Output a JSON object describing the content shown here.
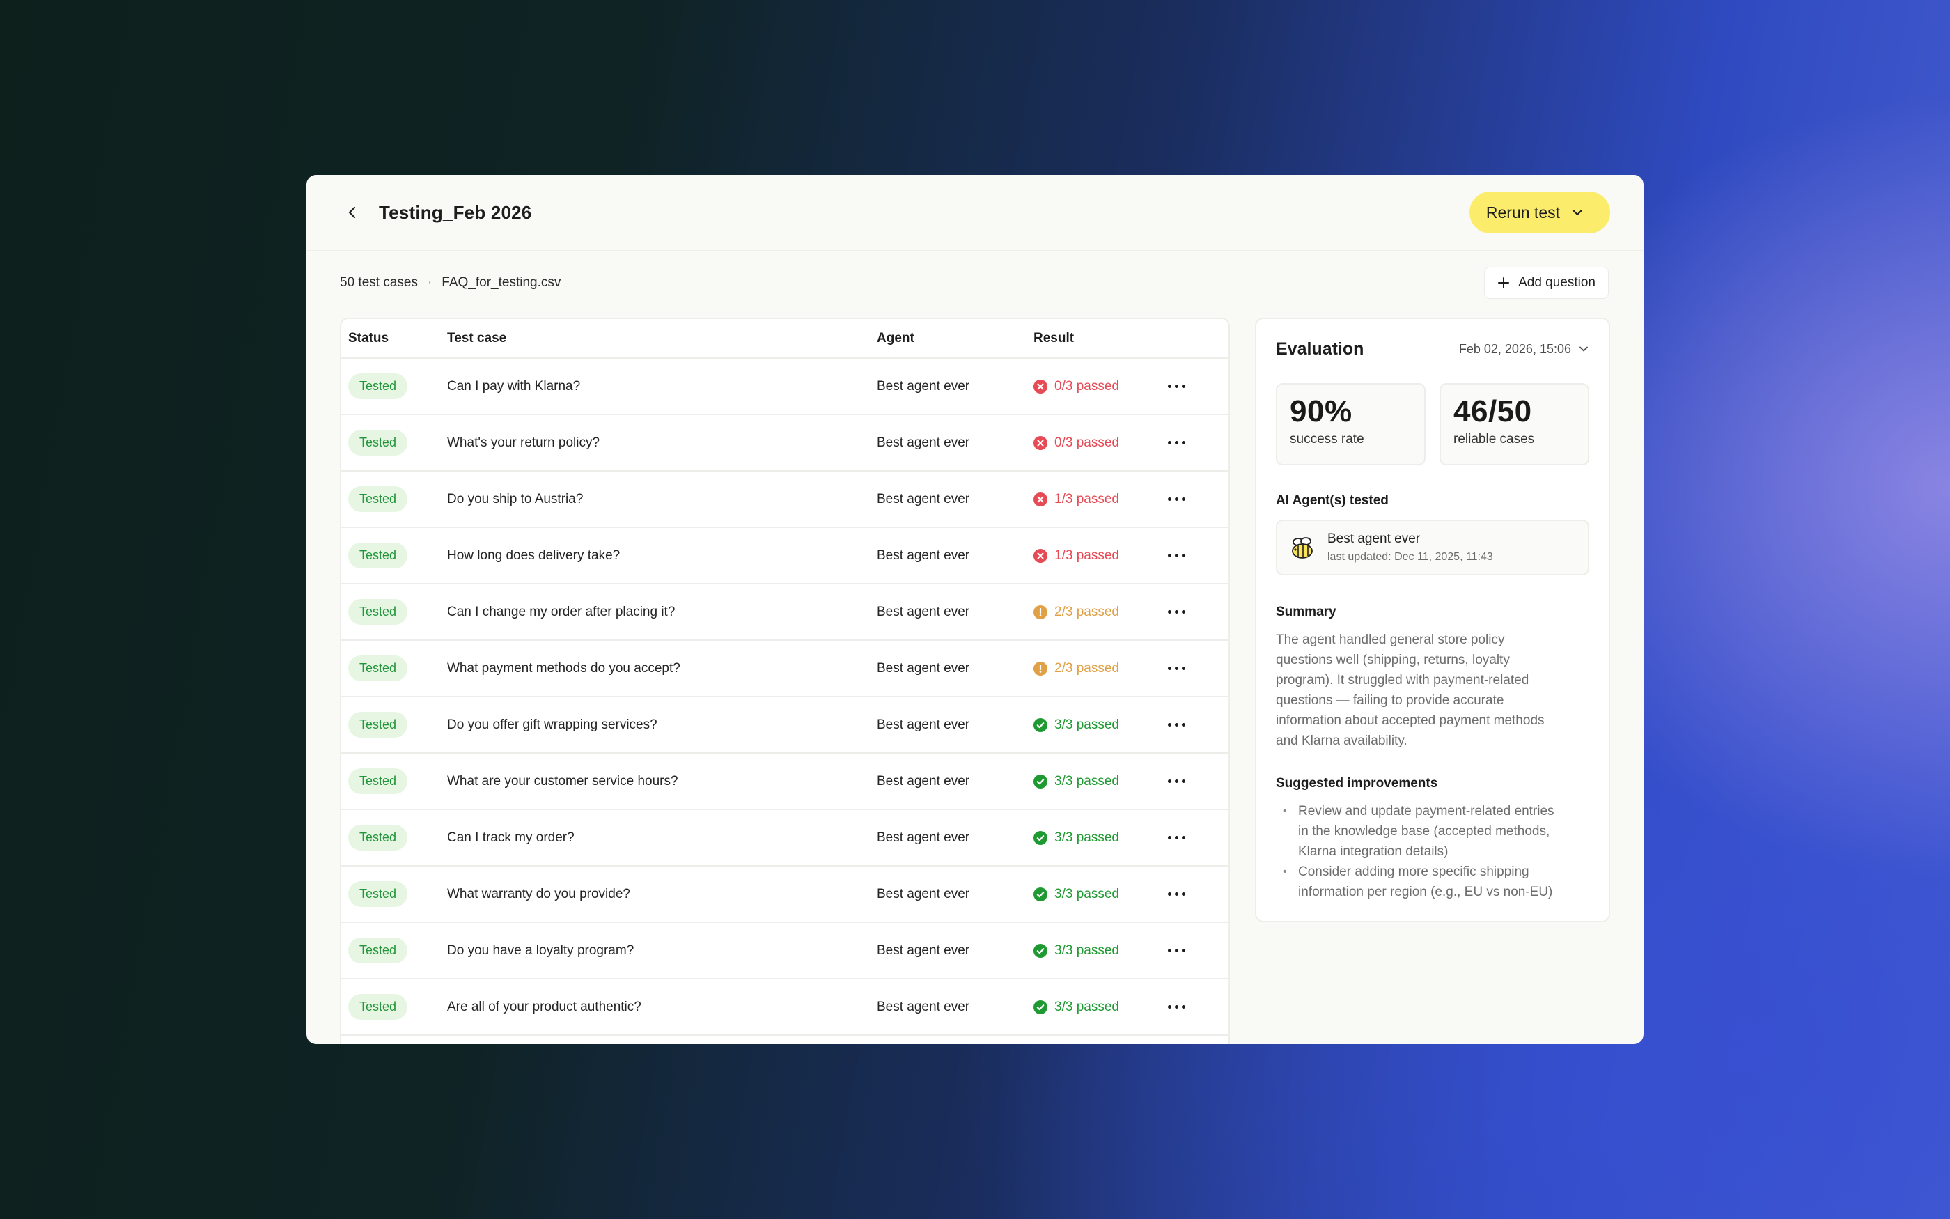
{
  "header": {
    "title": "Testing_Feb 2026",
    "rerun_label": "Rerun test"
  },
  "meta": {
    "test_cases": "50 test cases",
    "separator": "·",
    "file": "FAQ_for_testing.csv",
    "add_question_label": "Add question"
  },
  "table": {
    "columns": [
      "Status",
      "Test case",
      "Agent",
      "Result"
    ],
    "rows": [
      {
        "status": "Tested",
        "case": "Can I pay with Klarna?",
        "agent": "Best agent ever",
        "result": "0/3 passed",
        "level": "fail"
      },
      {
        "status": "Tested",
        "case": "What's your return policy?",
        "agent": "Best agent ever",
        "result": "0/3 passed",
        "level": "fail"
      },
      {
        "status": "Tested",
        "case": "Do you ship to Austria?",
        "agent": "Best agent ever",
        "result": "1/3 passed",
        "level": "fail"
      },
      {
        "status": "Tested",
        "case": "How long does delivery take?",
        "agent": "Best agent ever",
        "result": "1/3 passed",
        "level": "fail"
      },
      {
        "status": "Tested",
        "case": "Can I change my order after placing it?",
        "agent": "Best agent ever",
        "result": "2/3 passed",
        "level": "warn"
      },
      {
        "status": "Tested",
        "case": "What payment methods do you accept?",
        "agent": "Best agent ever",
        "result": "2/3 passed",
        "level": "warn"
      },
      {
        "status": "Tested",
        "case": "Do you offer gift wrapping services?",
        "agent": "Best agent ever",
        "result": "3/3 passed",
        "level": "pass"
      },
      {
        "status": "Tested",
        "case": "What are your customer service hours?",
        "agent": "Best agent ever",
        "result": "3/3 passed",
        "level": "pass"
      },
      {
        "status": "Tested",
        "case": "Can I track my order?",
        "agent": "Best agent ever",
        "result": "3/3 passed",
        "level": "pass"
      },
      {
        "status": "Tested",
        "case": "What warranty do you provide?",
        "agent": "Best agent ever",
        "result": "3/3 passed",
        "level": "pass"
      },
      {
        "status": "Tested",
        "case": "Do you have a loyalty program?",
        "agent": "Best agent ever",
        "result": "3/3 passed",
        "level": "pass"
      },
      {
        "status": "Tested",
        "case": "Are all of your product authentic?",
        "agent": "Best agent ever",
        "result": "3/3 passed",
        "level": "pass"
      }
    ]
  },
  "evaluation": {
    "title": "Evaluation",
    "date": "Feb 02, 2026, 15:06",
    "success_rate": "90%",
    "success_label": "success rate",
    "reliable": "46/50",
    "reliable_label": "reliable cases",
    "agents_title": "AI Agent(s) tested",
    "agent_name": "Best agent ever",
    "agent_updated": "last updated: Dec 11, 2025, 11:43",
    "summary_title": "Summary",
    "summary_lines": [
      "The agent handled general store policy",
      "questions well (shipping, returns, loyalty",
      "program). It struggled with payment-related",
      "questions — failing to provide accurate",
      "information about accepted payment methods",
      "and Klarna availability."
    ],
    "improvements_title": "Suggested improvements",
    "improvements": [
      [
        "Review and update payment-related entries",
        "in the knowledge base (accepted methods,",
        "Klarna integration details)"
      ],
      [
        "Consider adding more specific shipping",
        "information per region (e.g., EU vs non-EU)"
      ]
    ]
  },
  "colors": {
    "accent_button": "#fbec6b",
    "badge_bg": "#e6f6e3",
    "badge_text": "#23953a",
    "fail": "#e64a55",
    "warn": "#e0a146",
    "pass": "#1f9a32"
  }
}
